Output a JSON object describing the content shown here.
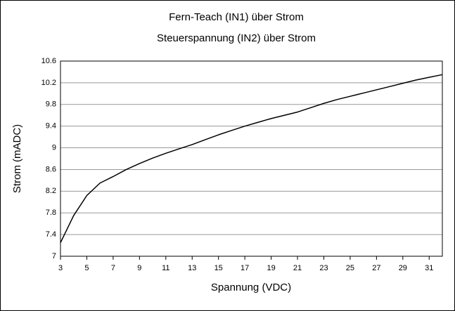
{
  "chart_data": {
    "type": "line",
    "title": "Fern-Teach (IN1) über Strom",
    "subtitle": "Steuerspannung (IN2) über Strom",
    "xlabel": "Spannung (VDC)",
    "ylabel": "Strom (mADC)",
    "x": [
      3,
      4,
      5,
      6,
      7,
      8,
      9,
      10,
      11,
      12,
      13,
      14,
      15,
      16,
      17,
      18,
      19,
      20,
      21,
      22,
      23,
      24,
      25,
      26,
      27,
      28,
      29,
      30,
      31,
      32
    ],
    "series": [
      {
        "name": "Strom",
        "color": "#000000",
        "values": [
          7.25,
          7.75,
          8.12,
          8.35,
          8.47,
          8.6,
          8.71,
          8.81,
          8.9,
          8.98,
          9.06,
          9.15,
          9.24,
          9.32,
          9.4,
          9.47,
          9.54,
          9.6,
          9.66,
          9.74,
          9.82,
          9.89,
          9.95,
          10.01,
          10.07,
          10.13,
          10.19,
          10.25,
          10.3,
          10.35
        ]
      }
    ],
    "xlim": [
      3,
      32
    ],
    "xticks": [
      3,
      5,
      7,
      9,
      11,
      13,
      15,
      17,
      19,
      21,
      23,
      25,
      27,
      29,
      31
    ],
    "ylim": [
      7,
      10.6
    ],
    "yticks": [
      7,
      7.4,
      7.8,
      8.2,
      8.6,
      9,
      9.4,
      9.8,
      10.2,
      10.6
    ],
    "grid": true
  }
}
